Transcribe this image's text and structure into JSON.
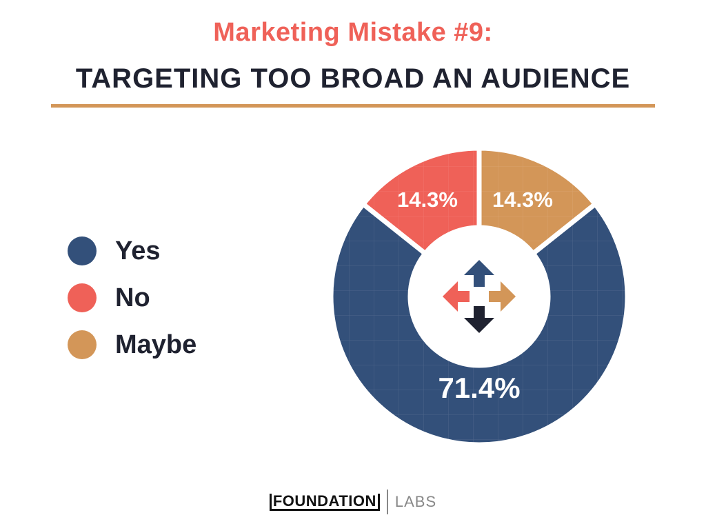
{
  "header": {
    "subtitle": "Marketing Mistake #9:",
    "title": "TARGETING TOO BROAD AN AUDIENCE"
  },
  "colors": {
    "yes": "#33507a",
    "no": "#ef6158",
    "maybe": "#d39658",
    "dark": "#1f2230",
    "rule": "#d39658"
  },
  "legend": [
    {
      "label": "Yes",
      "color": "#33507a"
    },
    {
      "label": "No",
      "color": "#ef6158"
    },
    {
      "label": "Maybe",
      "color": "#d39658"
    }
  ],
  "chart_data": {
    "type": "pie",
    "variant": "donut",
    "title": "Marketing Mistake #9: TARGETING TOO BROAD AN AUDIENCE",
    "categories": [
      "Yes",
      "No",
      "Maybe"
    ],
    "values": [
      71.4,
      14.3,
      14.3
    ],
    "labels": [
      "71.4%",
      "14.3%",
      "14.3%"
    ],
    "colors": [
      "#33507a",
      "#ef6158",
      "#d39658"
    ],
    "legend_position": "left",
    "center_icon": "four-way-arrows-icon"
  },
  "footer": {
    "brand": "FOUNDATION",
    "sub": "LABS"
  }
}
